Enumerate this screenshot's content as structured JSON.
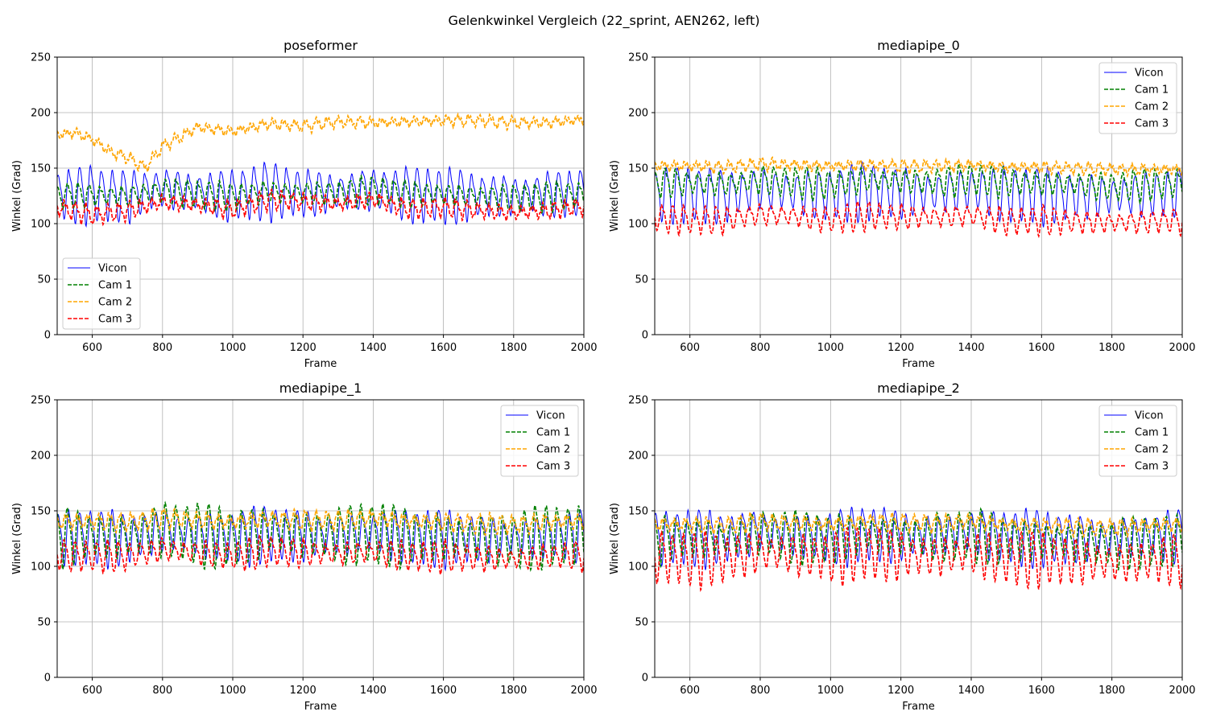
{
  "figure": {
    "suptitle": "Gelenkwinkel Vergleich (22_sprint, AEN262, left)"
  },
  "colors": {
    "Vicon": "#0000ff",
    "Cam 1": "#008000",
    "Cam 2": "#ffa500",
    "Cam 3": "#ff0000",
    "grid": "#b0b0b0"
  },
  "chart_data": [
    {
      "type": "line",
      "title": "poseformer",
      "xlabel": "Frame",
      "ylabel": "Winkel (Grad)",
      "xlim": [
        500,
        2000
      ],
      "ylim": [
        0,
        250
      ],
      "xticks": [
        600,
        800,
        1000,
        1200,
        1400,
        1600,
        1800,
        2000
      ],
      "yticks": [
        0,
        50,
        100,
        150,
        200,
        250
      ],
      "grid": true,
      "legend": "lower-left",
      "series": [
        {
          "name": "Vicon",
          "style": "solid",
          "period": 31,
          "amplitude": 22,
          "x": [
            500,
            600,
            700,
            800,
            900,
            1000,
            1100,
            1200,
            1300,
            1400,
            1500,
            1600,
            1700,
            1800,
            1900,
            2000
          ],
          "y": [
            127,
            128,
            126,
            133,
            129,
            127,
            131,
            129,
            129,
            132,
            128,
            127,
            126,
            126,
            128,
            129
          ]
        },
        {
          "name": "Cam 1",
          "style": "dashed",
          "period": 31,
          "amplitude": 11,
          "x": [
            500,
            600,
            700,
            800,
            900,
            1000,
            1100,
            1200,
            1300,
            1400,
            1500,
            1600,
            1700,
            1800,
            1900,
            2000
          ],
          "y": [
            126,
            126,
            125,
            130,
            127,
            125,
            129,
            128,
            128,
            131,
            127,
            127,
            125,
            124,
            125,
            127
          ]
        },
        {
          "name": "Cam 2",
          "style": "dashed",
          "period": 31,
          "amplitude": 4,
          "x": [
            500,
            550,
            600,
            650,
            700,
            750,
            800,
            850,
            900,
            1000,
            1100,
            1200,
            1300,
            1400,
            1500,
            1600,
            1700,
            1800,
            1900,
            2000
          ],
          "y": [
            180,
            182,
            176,
            165,
            160,
            150,
            170,
            178,
            187,
            183,
            190,
            188,
            192,
            191,
            192,
            193,
            193,
            191,
            191,
            194
          ]
        },
        {
          "name": "Cam 3",
          "style": "dashed",
          "period": 31,
          "amplitude": 7,
          "x": [
            500,
            600,
            700,
            800,
            900,
            1000,
            1100,
            1200,
            1300,
            1400,
            1500,
            1600,
            1700,
            1800,
            1900,
            2000
          ],
          "y": [
            115,
            108,
            112,
            120,
            117,
            113,
            122,
            120,
            118,
            122,
            114,
            115,
            112,
            110,
            112,
            116
          ]
        }
      ]
    },
    {
      "type": "line",
      "title": "mediapipe_0",
      "xlabel": "Frame",
      "ylabel": "Winkel (Grad)",
      "xlim": [
        500,
        2000
      ],
      "ylim": [
        0,
        250
      ],
      "xticks": [
        600,
        800,
        1000,
        1200,
        1400,
        1600,
        1800,
        2000
      ],
      "yticks": [
        0,
        50,
        100,
        150,
        200,
        250
      ],
      "grid": true,
      "legend": "upper-right",
      "series": [
        {
          "name": "Vicon",
          "style": "solid",
          "period": 31,
          "amplitude": 22,
          "x": [
            500,
            600,
            700,
            800,
            900,
            1000,
            1100,
            1200,
            1300,
            1400,
            1500,
            1600,
            1700,
            1800,
            1900,
            2000
          ],
          "y": [
            127,
            128,
            126,
            133,
            129,
            127,
            131,
            129,
            129,
            132,
            128,
            127,
            126,
            126,
            128,
            129
          ]
        },
        {
          "name": "Cam 1",
          "style": "dashed",
          "period": 31,
          "amplitude": 12,
          "x": [
            500,
            600,
            700,
            800,
            900,
            1000,
            1100,
            1200,
            1300,
            1400,
            1500,
            1600,
            1700,
            1800,
            1900,
            2000
          ],
          "y": [
            138,
            137,
            136,
            140,
            138,
            136,
            140,
            139,
            138,
            141,
            138,
            137,
            136,
            134,
            136,
            137
          ]
        },
        {
          "name": "Cam 2",
          "style": "dashed",
          "period": 31,
          "amplitude": 4,
          "x": [
            500,
            600,
            700,
            800,
            900,
            1000,
            1100,
            1200,
            1300,
            1400,
            1500,
            1600,
            1700,
            1800,
            1900,
            2000
          ],
          "y": [
            152,
            152,
            151,
            154,
            153,
            152,
            153,
            152,
            152,
            153,
            151,
            151,
            150,
            149,
            149,
            149
          ]
        },
        {
          "name": "Cam 3",
          "style": "dashed",
          "period": 31,
          "amplitude": 11,
          "x": [
            500,
            600,
            700,
            800,
            900,
            1000,
            1100,
            1200,
            1300,
            1400,
            1500,
            1600,
            1700,
            1800,
            1900,
            2000
          ],
          "y": [
            106,
            104,
            104,
            109,
            107,
            104,
            108,
            107,
            106,
            108,
            103,
            104,
            102,
            101,
            102,
            104
          ]
        }
      ]
    },
    {
      "type": "line",
      "title": "mediapipe_1",
      "xlabel": "Frame",
      "ylabel": "Winkel (Grad)",
      "xlim": [
        500,
        2000
      ],
      "ylim": [
        0,
        250
      ],
      "xticks": [
        600,
        800,
        1000,
        1200,
        1400,
        1600,
        1800,
        2000
      ],
      "yticks": [
        0,
        50,
        100,
        150,
        200,
        250
      ],
      "grid": true,
      "legend": "upper-right",
      "series": [
        {
          "name": "Vicon",
          "style": "solid",
          "period": 31,
          "amplitude": 22,
          "x": [
            500,
            600,
            700,
            800,
            900,
            1000,
            1100,
            1200,
            1300,
            1400,
            1500,
            1600,
            1700,
            1800,
            1900,
            2000
          ],
          "y": [
            127,
            128,
            126,
            133,
            129,
            127,
            131,
            129,
            129,
            132,
            128,
            127,
            126,
            126,
            128,
            129
          ]
        },
        {
          "name": "Cam 1",
          "style": "dashed",
          "period": 31,
          "amplitude": 24,
          "x": [
            500,
            600,
            700,
            800,
            900,
            1000,
            1100,
            1200,
            1300,
            1400,
            1500,
            1600,
            1700,
            1800,
            1900,
            2000
          ],
          "y": [
            128,
            129,
            128,
            135,
            131,
            127,
            133,
            130,
            130,
            132,
            128,
            128,
            126,
            125,
            130,
            130
          ]
        },
        {
          "name": "Cam 2",
          "style": "dashed",
          "period": 31,
          "amplitude": 7,
          "x": [
            500,
            600,
            700,
            800,
            900,
            1000,
            1100,
            1200,
            1300,
            1400,
            1500,
            1600,
            1700,
            1800,
            1900,
            2000
          ],
          "y": [
            140,
            141,
            140,
            144,
            142,
            140,
            143,
            142,
            142,
            144,
            141,
            140,
            139,
            138,
            140,
            141
          ]
        },
        {
          "name": "Cam 3",
          "style": "dashed",
          "period": 31,
          "amplitude": 12,
          "x": [
            500,
            600,
            700,
            800,
            900,
            1000,
            1100,
            1200,
            1300,
            1400,
            1500,
            1600,
            1700,
            1800,
            1900,
            2000
          ],
          "y": [
            111,
            110,
            110,
            116,
            113,
            110,
            115,
            113,
            112,
            114,
            110,
            110,
            108,
            107,
            110,
            111
          ]
        }
      ]
    },
    {
      "type": "line",
      "title": "mediapipe_2",
      "xlabel": "Frame",
      "ylabel": "Winkel (Grad)",
      "xlim": [
        500,
        2000
      ],
      "ylim": [
        0,
        250
      ],
      "xticks": [
        600,
        800,
        1000,
        1200,
        1400,
        1600,
        1800,
        2000
      ],
      "yticks": [
        0,
        50,
        100,
        150,
        200,
        250
      ],
      "grid": true,
      "legend": "upper-right",
      "series": [
        {
          "name": "Vicon",
          "style": "solid",
          "period": 31,
          "amplitude": 22,
          "x": [
            500,
            600,
            700,
            800,
            900,
            1000,
            1100,
            1200,
            1300,
            1400,
            1500,
            1600,
            1700,
            1800,
            1900,
            2000
          ],
          "y": [
            127,
            128,
            126,
            133,
            129,
            127,
            131,
            129,
            129,
            132,
            128,
            127,
            126,
            126,
            128,
            129
          ]
        },
        {
          "name": "Cam 1",
          "style": "dashed",
          "period": 31,
          "amplitude": 20,
          "x": [
            500,
            600,
            700,
            800,
            900,
            1000,
            1100,
            1200,
            1300,
            1400,
            1500,
            1600,
            1700,
            1800,
            1900,
            2000
          ],
          "y": [
            126,
            127,
            126,
            132,
            128,
            126,
            130,
            128,
            128,
            130,
            125,
            125,
            123,
            121,
            124,
            126
          ]
        },
        {
          "name": "Cam 2",
          "style": "dashed",
          "period": 31,
          "amplitude": 6,
          "x": [
            500,
            600,
            700,
            800,
            900,
            1000,
            1100,
            1200,
            1300,
            1400,
            1500,
            1600,
            1700,
            1800,
            1900,
            2000
          ],
          "y": [
            138,
            138,
            137,
            141,
            139,
            138,
            141,
            140,
            139,
            141,
            138,
            137,
            136,
            135,
            137,
            138
          ]
        },
        {
          "name": "Cam 3",
          "style": "dashed",
          "period": 31,
          "amplitude": 21,
          "x": [
            500,
            600,
            700,
            800,
            900,
            1000,
            1100,
            1200,
            1300,
            1400,
            1500,
            1600,
            1700,
            1800,
            1900,
            2000
          ],
          "y": [
            110,
            108,
            108,
            114,
            112,
            109,
            114,
            111,
            110,
            113,
            108,
            108,
            106,
            104,
            106,
            108
          ]
        }
      ]
    }
  ]
}
